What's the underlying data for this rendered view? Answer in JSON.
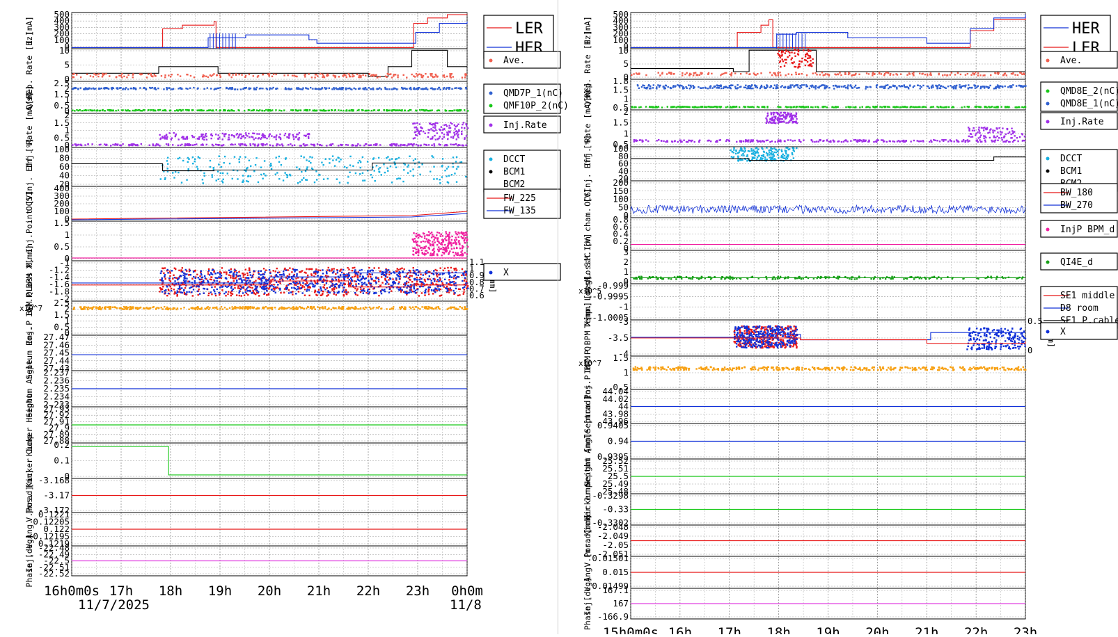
{
  "colors": {
    "red": "#e81818",
    "blue": "#1030d8",
    "green": "#18c818",
    "orange": "#f7a012",
    "purple": "#a030e8",
    "cyan": "#18b0e0",
    "black": "#000000",
    "pink": "#f020a0",
    "salmon": "#f06050",
    "steel": "#3060d0",
    "olive": "#18a018",
    "magenta": "#e040e0"
  },
  "left": {
    "time_ticks": [
      "16h0m0s",
      "17h",
      "18h",
      "19h",
      "20h",
      "21h",
      "22h",
      "23h",
      "0h0m"
    ],
    "date_left": "11/7/2025",
    "date_right": "11/8",
    "rows": [
      {
        "label": "I [mA]",
        "ticks": [
          "500",
          "400",
          "300",
          "200",
          "100",
          "0"
        ],
        "legend": [
          {
            "text": "LER",
            "color": "red",
            "kind": "line"
          },
          {
            "text": "HER",
            "color": "blue",
            "kind": "line"
          }
        ]
      },
      {
        "label": "Rep. Rate [Hz]",
        "ticks": [
          "10",
          "5",
          "0"
        ],
        "legend": [
          {
            "text": "Ave.",
            "color": "salmon",
            "kind": "dot"
          }
        ]
      },
      {
        "label": "Q[nC]",
        "ticks": [
          "2.5",
          "2",
          "1.5",
          "1",
          "0.5",
          "0"
        ],
        "legend": [
          {
            "text": "QMD7P_1(nC)",
            "color": "steel",
            "kind": "dot"
          },
          {
            "text": "QMF10P_2(nC)",
            "color": "green",
            "kind": "dot"
          }
        ]
      },
      {
        "label": "Inj. Rate [mA/s]",
        "ticks": [
          "2",
          "1.5",
          "1",
          "0.5",
          "0"
        ],
        "legend": [
          {
            "text": "Inj.Rate",
            "color": "purple",
            "kind": "dot"
          }
        ]
      },
      {
        "label": "Inj. Eff [%]",
        "ticks": [
          "100",
          "80",
          "60",
          "40",
          "20"
        ],
        "legend": [
          {
            "text": "DCCT",
            "color": "cyan",
            "kind": "dot"
          },
          {
            "text": "BCM1",
            "color": "black",
            "kind": "dot"
          },
          {
            "text": "BCM2",
            "color": "black",
            "kind": "none"
          }
        ]
      },
      {
        "label": "OCS",
        "ticks": [
          "400",
          "300",
          "200",
          "100",
          "0"
        ],
        "legend": [
          {
            "text": "FW_225",
            "color": "red",
            "kind": "line"
          },
          {
            "text": "FW_135",
            "color": "blue",
            "kind": "line"
          }
        ]
      },
      {
        "label": "Loss M. Inj.Point [V]",
        "ticks": [
          "1.5",
          "1",
          "0.5",
          "0"
        ],
        "legend": []
      },
      {
        "label": "Inj.P BPM X[mm]",
        "ticks": [
          "-1",
          "-1.2",
          "-1.4",
          "-1.6",
          "-1.8",
          "-2"
        ],
        "right_label": "Y[mm]",
        "right_ticks": [
          "1.1",
          "1",
          "0.9",
          "0.8",
          "0.7",
          "0.6"
        ],
        "legend": [
          {
            "text": "X",
            "color": "blue",
            "kind": "dot"
          }
        ]
      },
      {
        "label": "Inj.P BPM Q",
        "ticks": [
          "2.5",
          "2",
          "1.5",
          "1",
          "0.5",
          "0"
        ],
        "exponent": "x10^7",
        "legend": []
      },
      {
        "label": "Septum Pos.",
        "ticks": [
          "27.47",
          "27.46",
          "27.45",
          "27.44",
          "27.43"
        ],
        "legend": []
      },
      {
        "label": "Septum Angle",
        "ticks": [
          "2.237",
          "2.236",
          "2.235",
          "2.234",
          "2.233"
        ],
        "legend": []
      },
      {
        "label": "Kicker Height",
        "ticks": [
          "27.93",
          "27.92",
          "27.91",
          "27.9",
          "27.89",
          "27.88"
        ],
        "legend": []
      },
      {
        "label": "Kicker Jump",
        "ticks": [
          "0.2",
          "0.1",
          "0"
        ],
        "legend": []
      },
      {
        "label": "V.Pos. [mm]",
        "ticks": [
          "-3.168",
          "-3.17",
          "-3.172"
        ],
        "legend": []
      },
      {
        "label": "Inj. V.Ang. [mrad]",
        "ticks": [
          "0.1221",
          "0.12205",
          "0.122",
          "0.12195",
          "0.1219"
        ],
        "legend": []
      },
      {
        "label": "Phase [deg]",
        "ticks": [
          "-22.48",
          "-22.49",
          "-22.5",
          "-22.51",
          "-22.52"
        ],
        "legend": []
      }
    ]
  },
  "right": {
    "time_ticks": [
      "15h0m0s",
      "16h",
      "17h",
      "18h",
      "19h",
      "20h",
      "21h",
      "22h",
      "23h"
    ],
    "rows": [
      {
        "label": "I [mA]",
        "ticks": [
          "500",
          "400",
          "300",
          "200",
          "100",
          "0"
        ],
        "legend": [
          {
            "text": "HER",
            "color": "blue",
            "kind": "line"
          },
          {
            "text": "LER",
            "color": "red",
            "kind": "line"
          }
        ]
      },
      {
        "label": "Rep. Rate [Hz]",
        "ticks": [
          "10",
          "5",
          "0"
        ],
        "legend": [
          {
            "text": "Ave.",
            "color": "salmon",
            "kind": "dot"
          }
        ]
      },
      {
        "label": "Q[nC]",
        "ticks": [
          "1.8",
          "1.5",
          "1",
          "0.5"
        ],
        "legend": [
          {
            "text": "QMD8E_2(nC)",
            "color": "green",
            "kind": "dot"
          },
          {
            "text": "QMD8E_1(nC)",
            "color": "steel",
            "kind": "dot"
          }
        ]
      },
      {
        "label": "Inj. Rate [mA/s]",
        "ticks": [
          "2",
          "1.5",
          "1",
          "0.5"
        ],
        "legend": [
          {
            "text": "Inj.Rate",
            "color": "purple",
            "kind": "dot"
          }
        ]
      },
      {
        "label": "Inj. Eff [%]",
        "ticks": [
          "100",
          "80",
          "60",
          "40",
          "20"
        ],
        "legend": [
          {
            "text": "DCCT",
            "color": "cyan",
            "kind": "dot"
          },
          {
            "text": "BCM1",
            "color": "black",
            "kind": "dot"
          },
          {
            "text": "BCM2",
            "color": "black",
            "kind": "none"
          }
        ]
      },
      {
        "label": "OCS",
        "ticks": [
          "200",
          "150",
          "100",
          "50",
          "0"
        ],
        "legend": [
          {
            "text": "BW_180",
            "color": "red",
            "kind": "line"
          },
          {
            "text": "BW_270",
            "color": "blue",
            "kind": "line"
          }
        ]
      },
      {
        "label": "LossM.Ion cham. [V]",
        "ticks": [
          "0.8",
          "0.6",
          "0.4",
          "0.2",
          "0"
        ],
        "legend": [
          {
            "text": "InjP BPM_d",
            "color": "pink",
            "kind": "dot"
          }
        ]
      },
      {
        "label": "LossM. SiC [V]",
        "ticks": [
          "3",
          "2",
          "1",
          "0"
        ],
        "legend": [
          {
            "text": "QI4E_d",
            "color": "olive",
            "kind": "dot"
          }
        ]
      },
      {
        "label": "Temp. [deg]",
        "ticks": [
          "-0.999",
          "-0.9995",
          "-1",
          "-1.0005"
        ],
        "exponent": "x10^5",
        "legend": [
          {
            "text": "SE1 middle",
            "color": "red",
            "kind": "line"
          },
          {
            "text": "D8 room",
            "color": "blue",
            "kind": "line"
          },
          {
            "text": "SE1 P.cable",
            "color": "black",
            "kind": "line"
          }
        ]
      },
      {
        "label": "Inj.P BPM X[mm]",
        "ticks": [
          "-3",
          "-3.5",
          "-4"
        ],
        "right_label": "[mm]",
        "right_ticks": [
          "0.5",
          "0"
        ],
        "legend": [
          {
            "text": "X",
            "color": "blue",
            "kind": "dot"
          }
        ]
      },
      {
        "label": "Inj.P BPM Q",
        "ticks": [
          "1.5",
          "1",
          "0.5"
        ],
        "exponent": "x10^7",
        "legend": []
      },
      {
        "label": "Septum Pos.",
        "ticks": [
          "44.04",
          "44.02",
          "44",
          "43.98",
          "43.96"
        ],
        "legend": []
      },
      {
        "label": "Septum Angle [mrad]",
        "ticks": [
          "0.9405",
          "0.94",
          "0.9395"
        ],
        "legend": []
      },
      {
        "label": "Kicker Height [mm]",
        "ticks": [
          "25.52",
          "25.51",
          "25.5",
          "25.49",
          "25.48"
        ],
        "legend": []
      },
      {
        "label": "Kicker Jump",
        "ticks": [
          "-0.3298",
          "-0.33",
          "-0.3302"
        ],
        "legend": []
      },
      {
        "label": "V.Pos. [mm]",
        "ticks": [
          "-2.048",
          "-2.049",
          "-2.05",
          "-2.051"
        ],
        "legend": []
      },
      {
        "label": "Inj. V.Ang. [mrad]",
        "ticks": [
          "0.01501",
          "0.015",
          "0.01499"
        ],
        "legend": []
      },
      {
        "label": "Phase [deg]",
        "ticks": [
          "167.1",
          "167",
          "-166.9"
        ],
        "legend": []
      }
    ]
  },
  "chart_data": [
    {
      "type": "line",
      "x_range": [
        "11/7/2025 16h0m0s",
        "11/8 0h0m"
      ],
      "series": [
        {
          "name": "LER",
          "x": [
            "16h",
            "17h",
            "17h15",
            "18h",
            "18h20",
            "19h",
            "20h",
            "21h",
            "22h",
            "22h40",
            "23h",
            "23h30",
            "0h"
          ],
          "values": [
            0,
            0,
            300,
            400,
            0,
            0,
            0,
            0,
            0,
            0,
            380,
            460,
            480
          ]
        },
        {
          "name": "HER",
          "x": [
            "16h",
            "18h10",
            "18h30",
            "19h",
            "20h",
            "20h40",
            "21h",
            "22h",
            "22h40",
            "23h",
            "0h"
          ],
          "values": [
            0,
            0,
            150,
            180,
            160,
            50,
            50,
            50,
            50,
            250,
            400
          ]
        },
        {
          "name": "QMD7P_1(nC)",
          "values": [
            2.2
          ]
        },
        {
          "name": "Inj.Rate",
          "values": [
            0.2,
            0.9,
            0.5,
            1.3
          ]
        },
        {
          "name": "DCCT",
          "values": [
            60,
            40,
            45,
            100,
            20
          ]
        },
        {
          "name": "BCM1",
          "values": [
            55,
            38,
            40,
            55,
            55
          ]
        },
        {
          "name": "FW_225",
          "values": [
            0,
            40,
            70,
            90
          ]
        },
        {
          "name": "FW_135",
          "values": [
            0,
            30,
            60,
            80
          ]
        },
        {
          "name": "Kicker Jump",
          "values": [
            0.22,
            0.22,
            0
          ]
        }
      ]
    },
    {
      "type": "line",
      "x_range": [
        "15h0m0s",
        "24h"
      ],
      "series": [
        {
          "name": "HER",
          "x": [
            "15h",
            "18h",
            "18h15",
            "19h",
            "20h",
            "22h",
            "22h45",
            "23h",
            "23h30",
            "24h"
          ],
          "values": [
            0,
            0,
            150,
            150,
            80,
            80,
            80,
            300,
            450,
            480
          ]
        },
        {
          "name": "LER",
          "x": [
            "15h",
            "17h",
            "17h30",
            "18h",
            "18h20",
            "19h",
            "20h",
            "22h",
            "22h45",
            "23h",
            "24h"
          ],
          "values": [
            0,
            0,
            400,
            460,
            0,
            0,
            0,
            0,
            300,
            420,
            470
          ]
        },
        {
          "name": "QMD8E_1(nC)",
          "values": [
            1.6
          ]
        },
        {
          "name": "Inj.Rate",
          "values": [
            0.2,
            1.9,
            0.2,
            1.3
          ]
        },
        {
          "name": "DCCT",
          "values": [
            90,
            80,
            90
          ]
        },
        {
          "name": "BCM1",
          "values": [
            60,
            55,
            70
          ]
        },
        {
          "name": "BW_270",
          "values": [
            30,
            20
          ]
        },
        {
          "name": "X",
          "values": [
            -3.8,
            -3.6,
            -3.9
          ]
        }
      ]
    }
  ]
}
